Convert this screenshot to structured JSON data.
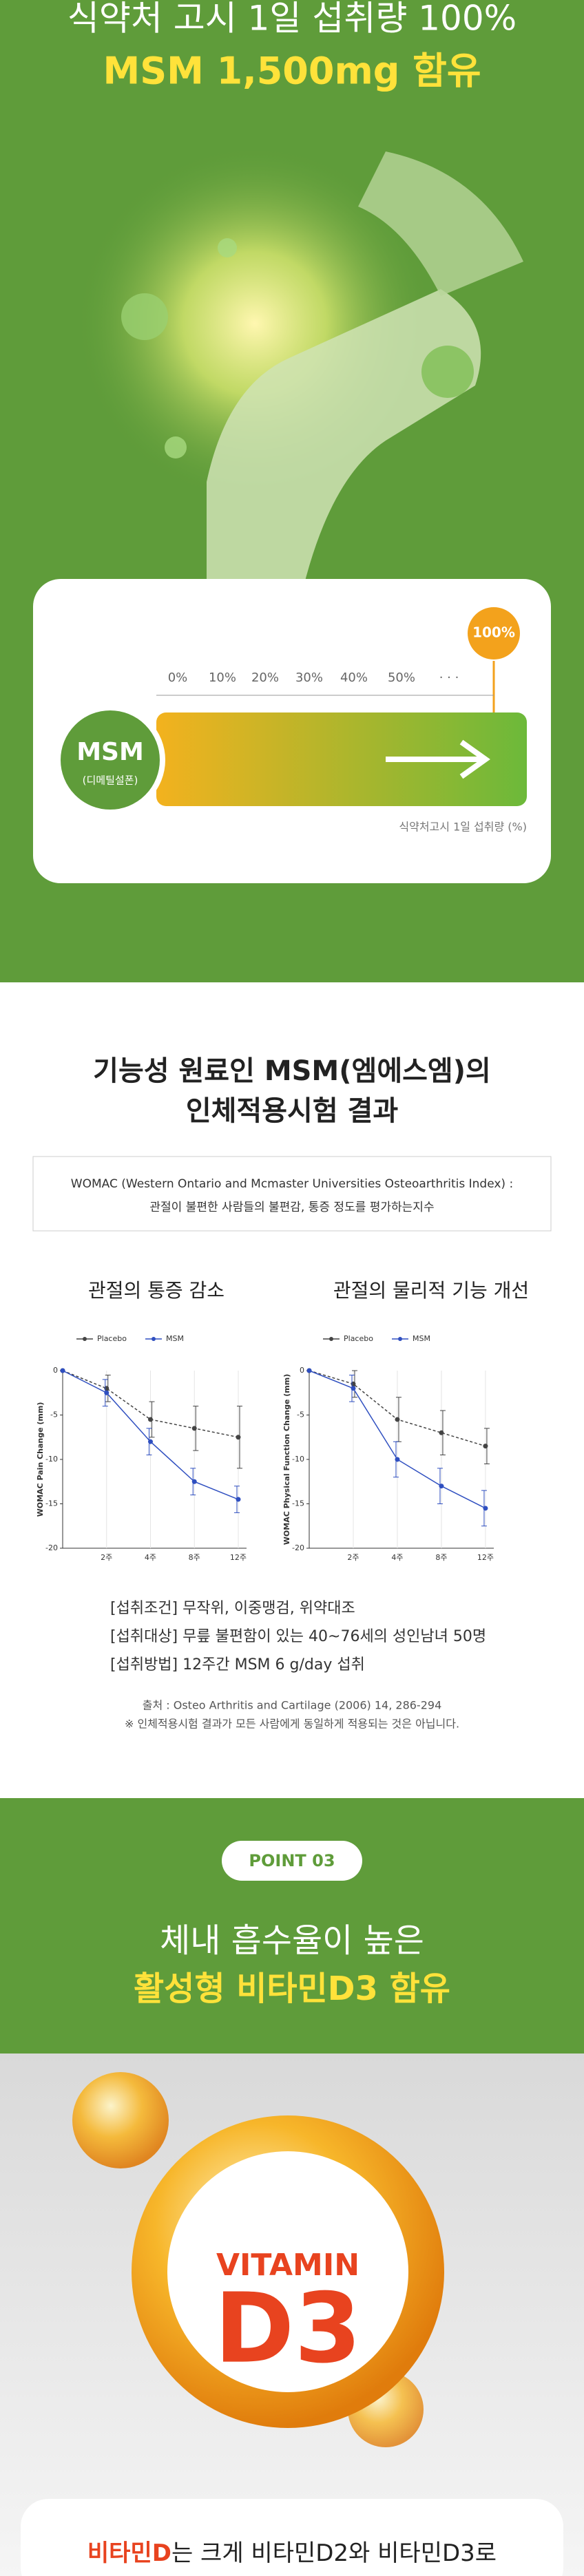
{
  "hero": {
    "title_line1": "식약처 고시 1일 섭취량 100%",
    "title_line2": "MSM 1,500mg 함유"
  },
  "scale_card": {
    "badge": "100%",
    "scale_labels": [
      "0%",
      "10%",
      "20%",
      "30%",
      "40%",
      "50%",
      "· · ·"
    ],
    "ingredient": "MSM",
    "ingredient_sub": "(디메틸설폰)",
    "caption": "식약처고시 1일 섭취량 (%)"
  },
  "study": {
    "title_line1": "기능성 원료인 MSM(엠에스엠)의",
    "title_line2": "인체적용시험 결과",
    "box_line1": "WOMAC (Western Ontario and Mcmaster Universities Osteoarthritis Index) :",
    "box_line2": "관절이 불편한 사람들의 불편감, 통증 정도를 평가하는지수",
    "conditions": [
      "[섭취조건] 무작위, 이중맹검, 위약대조",
      "[섭취대상] 무릎 불편함이 있는 40~76세의 성인남녀 50명",
      "[섭취방법] 12주간 MSM 6 g/day 섭취"
    ],
    "source": "출처 : Osteo Arthritis and Cartilage (2006) 14, 286-294",
    "disclaimer": "※ 인체적용시험 결과가 모든 사람에게 동일하게 적용되는 것은 아닙니다."
  },
  "chart_data": [
    {
      "type": "line",
      "title": "관절의 통증 감소",
      "y_label": "WOMAC Pain Change (mm)",
      "categories": [
        null,
        "2주",
        "4주",
        "8주",
        "12주"
      ],
      "ylim": [
        -20,
        0
      ],
      "yticks": [
        0,
        -5,
        -10,
        -15,
        -20
      ],
      "series": [
        {
          "name": "Placebo",
          "color": "#444444",
          "values": [
            0,
            -2,
            -5.5,
            -6.5,
            -7.5
          ],
          "errors": [
            0,
            1.5,
            2,
            2.5,
            3.5
          ]
        },
        {
          "name": "MSM",
          "color": "#2f4fc0",
          "values": [
            0,
            -2.5,
            -8,
            -12.5,
            -14.5
          ],
          "errors": [
            0,
            1.5,
            1.5,
            1.5,
            1.5
          ]
        }
      ]
    },
    {
      "type": "line",
      "title": "관절의 물리적 기능 개선",
      "y_label": "WOMAC Physical Function Change (mm)",
      "categories": [
        null,
        "2주",
        "4주",
        "8주",
        "12주"
      ],
      "ylim": [
        -20,
        0
      ],
      "yticks": [
        0,
        -5,
        -10,
        -15,
        -20
      ],
      "series": [
        {
          "name": "Placebo",
          "color": "#444444",
          "values": [
            0,
            -1.5,
            -5.5,
            -7,
            -8.5
          ],
          "errors": [
            0,
            1.5,
            2.5,
            2.5,
            2
          ]
        },
        {
          "name": "MSM",
          "color": "#2f4fc0",
          "values": [
            0,
            -2,
            -10,
            -13,
            -15.5
          ],
          "errors": [
            0,
            1.5,
            2,
            2,
            2
          ]
        }
      ]
    }
  ],
  "point": {
    "badge": "POINT 03",
    "title_line1": "체내 흡수율이 높은",
    "title_line2": "활성형 비타민D3 함유"
  },
  "vitamin": {
    "label_top": "VITAMIN",
    "label_main": "D3"
  },
  "intro": {
    "highlight": "비타민D",
    "text": "는 크게 비타민D2와 비타민D3로"
  }
}
